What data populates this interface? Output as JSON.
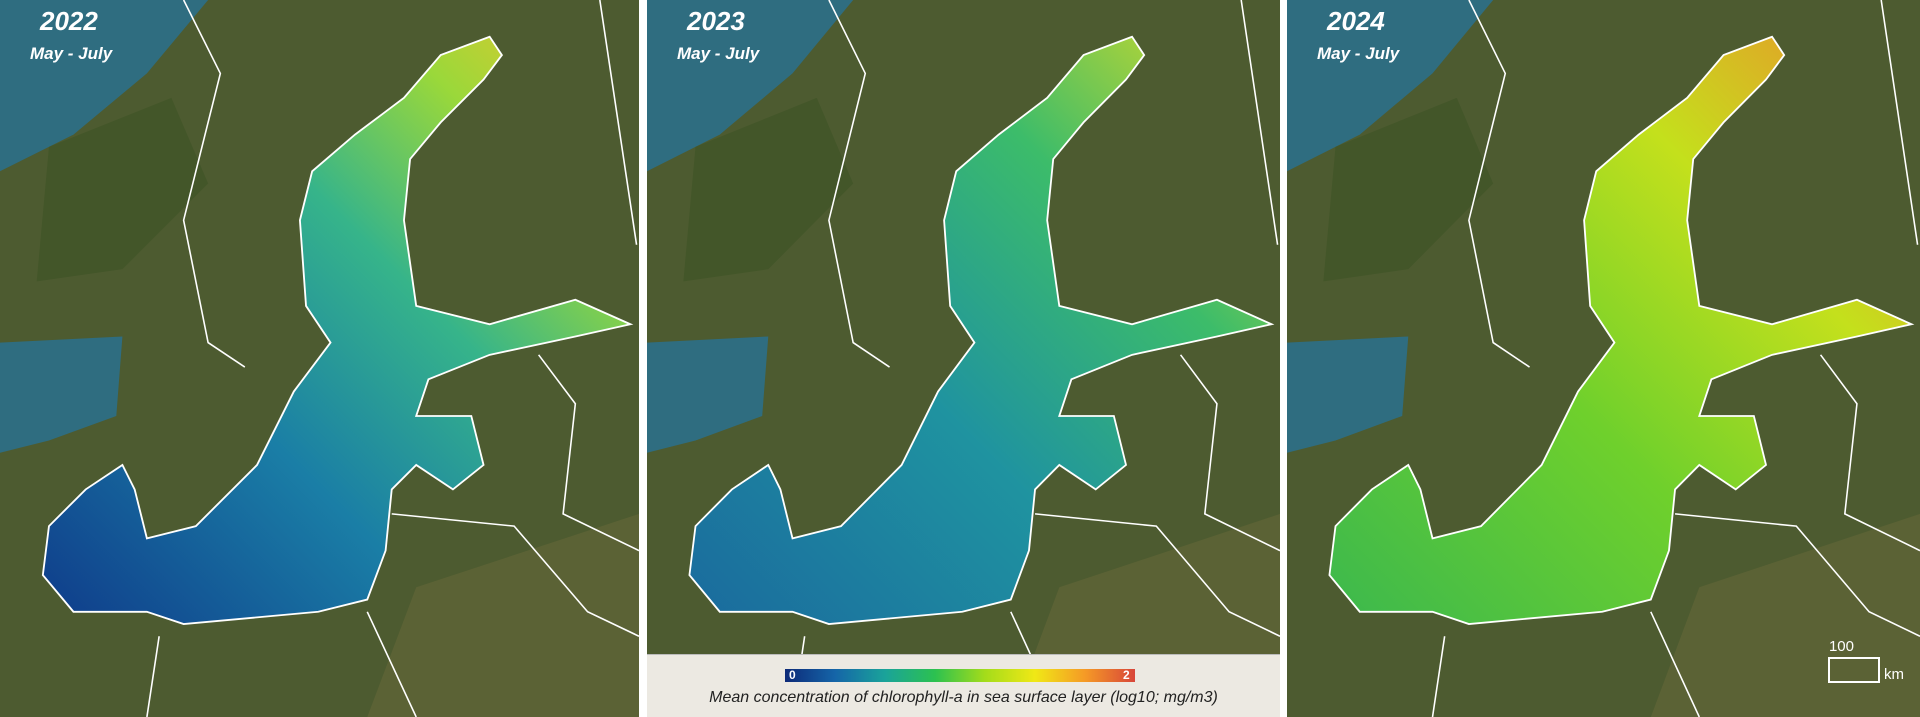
{
  "panels": [
    {
      "year": "2022",
      "period": "May - July"
    },
    {
      "year": "2023",
      "period": "May - July"
    },
    {
      "year": "2024",
      "period": "May - July"
    }
  ],
  "legend": {
    "min_label": "0",
    "max_label": "2",
    "title": "Mean concentration of chlorophyll-a in sea surface layer (log10; mg/m3)"
  },
  "scale_bar": {
    "length": "100",
    "unit": "km"
  }
}
